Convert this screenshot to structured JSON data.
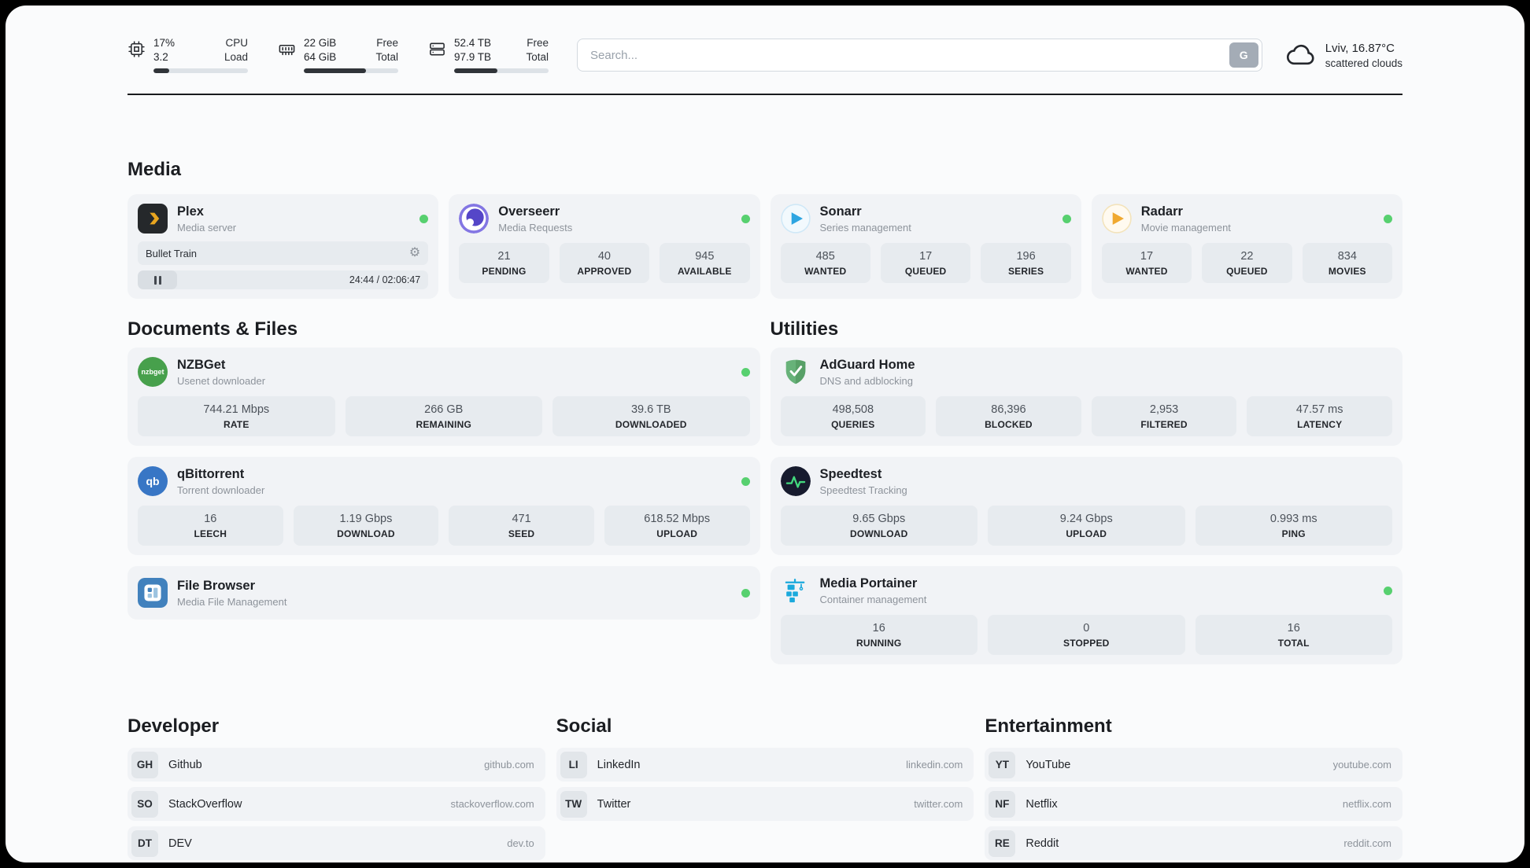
{
  "topbar": {
    "cpu": {
      "value_top": "17%",
      "value_bottom": "3.2",
      "label_top": "CPU",
      "label_bottom": "Load",
      "percent": 17
    },
    "memory": {
      "value_top": "22 GiB",
      "value_bottom": "64 GiB",
      "label_top": "Free",
      "label_bottom": "Total",
      "percent": 66
    },
    "storage": {
      "value_top": "52.4 TB",
      "value_bottom": "97.9 TB",
      "label_top": "Free",
      "label_bottom": "Total",
      "percent": 46
    },
    "search": {
      "placeholder": "Search...",
      "button_label": "G"
    },
    "weather": {
      "location": "Lviv, 16.87°C",
      "condition": "scattered clouds"
    }
  },
  "media": {
    "title": "Media",
    "plex": {
      "name": "Plex",
      "subtitle": "Media server",
      "now_playing": "Bullet Train",
      "time": "24:44 / 02:06:47"
    },
    "overseerr": {
      "name": "Overseerr",
      "subtitle": "Media Requests",
      "stats": [
        {
          "value": "21",
          "label": "PENDING"
        },
        {
          "value": "40",
          "label": "APPROVED"
        },
        {
          "value": "945",
          "label": "AVAILABLE"
        }
      ]
    },
    "sonarr": {
      "name": "Sonarr",
      "subtitle": "Series management",
      "stats": [
        {
          "value": "485",
          "label": "WANTED"
        },
        {
          "value": "17",
          "label": "QUEUED"
        },
        {
          "value": "196",
          "label": "SERIES"
        }
      ]
    },
    "radarr": {
      "name": "Radarr",
      "subtitle": "Movie management",
      "stats": [
        {
          "value": "17",
          "label": "WANTED"
        },
        {
          "value": "22",
          "label": "QUEUED"
        },
        {
          "value": "834",
          "label": "MOVIES"
        }
      ]
    }
  },
  "documents": {
    "title": "Documents & Files",
    "nzbget": {
      "name": "NZBGet",
      "subtitle": "Usenet downloader",
      "icon_text": "nzbget",
      "stats": [
        {
          "value": "744.21 Mbps",
          "label": "RATE"
        },
        {
          "value": "266 GB",
          "label": "REMAINING"
        },
        {
          "value": "39.6 TB",
          "label": "DOWNLOADED"
        }
      ]
    },
    "qbittorrent": {
      "name": "qBittorrent",
      "subtitle": "Torrent downloader",
      "icon_text": "qb",
      "stats": [
        {
          "value": "16",
          "label": "LEECH"
        },
        {
          "value": "1.19 Gbps",
          "label": "DOWNLOAD"
        },
        {
          "value": "471",
          "label": "SEED"
        },
        {
          "value": "618.52 Mbps",
          "label": "UPLOAD"
        }
      ]
    },
    "filebrowser": {
      "name": "File Browser",
      "subtitle": "Media File Management"
    }
  },
  "utilities": {
    "title": "Utilities",
    "adguard": {
      "name": "AdGuard Home",
      "subtitle": "DNS and adblocking",
      "stats": [
        {
          "value": "498,508",
          "label": "QUERIES"
        },
        {
          "value": "86,396",
          "label": "BLOCKED"
        },
        {
          "value": "2,953",
          "label": "FILTERED"
        },
        {
          "value": "47.57 ms",
          "label": "LATENCY"
        }
      ]
    },
    "speedtest": {
      "name": "Speedtest",
      "subtitle": "Speedtest Tracking",
      "stats": [
        {
          "value": "9.65 Gbps",
          "label": "DOWNLOAD"
        },
        {
          "value": "9.24 Gbps",
          "label": "UPLOAD"
        },
        {
          "value": "0.993 ms",
          "label": "PING"
        }
      ]
    },
    "portainer": {
      "name": "Media Portainer",
      "subtitle": "Container management",
      "stats": [
        {
          "value": "16",
          "label": "RUNNING"
        },
        {
          "value": "0",
          "label": "STOPPED"
        },
        {
          "value": "16",
          "label": "TOTAL"
        }
      ]
    }
  },
  "bookmarks": {
    "developer": {
      "title": "Developer",
      "links": [
        {
          "abbr": "GH",
          "name": "Github",
          "url": "github.com"
        },
        {
          "abbr": "SO",
          "name": "StackOverflow",
          "url": "stackoverflow.com"
        },
        {
          "abbr": "DT",
          "name": "DEV",
          "url": "dev.to"
        }
      ]
    },
    "social": {
      "title": "Social",
      "links": [
        {
          "abbr": "LI",
          "name": "LinkedIn",
          "url": "linkedin.com"
        },
        {
          "abbr": "TW",
          "name": "Twitter",
          "url": "twitter.com"
        }
      ]
    },
    "entertainment": {
      "title": "Entertainment",
      "links": [
        {
          "abbr": "YT",
          "name": "YouTube",
          "url": "youtube.com"
        },
        {
          "abbr": "NF",
          "name": "Netflix",
          "url": "netflix.com"
        },
        {
          "abbr": "RE",
          "name": "Reddit",
          "url": "reddit.com"
        }
      ]
    }
  }
}
